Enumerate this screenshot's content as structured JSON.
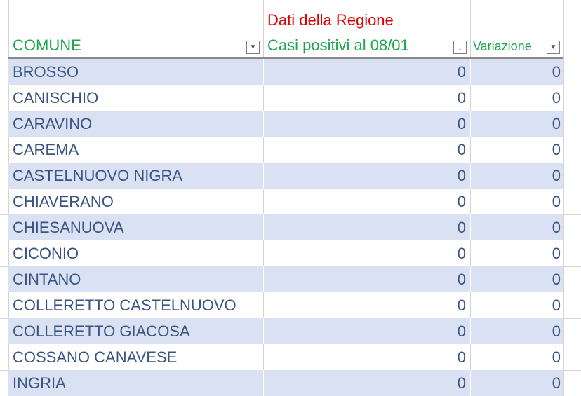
{
  "title": "Dati della Regione",
  "headers": {
    "comune": "COMUNE",
    "casi": "Casi positivi al 08/01",
    "variazione": "Variazione"
  },
  "icons": {
    "filter": "dropdown-arrow-icon",
    "sort": "sort-descending-icon"
  },
  "colors": {
    "header": "#1ea64e",
    "title": "#e00000",
    "band": "#d9e1f2",
    "text": "#3a5482"
  },
  "rows": [
    {
      "comune": "BROSSO",
      "casi": "0",
      "variazione": "0"
    },
    {
      "comune": "CANISCHIO",
      "casi": "0",
      "variazione": "0"
    },
    {
      "comune": "CARAVINO",
      "casi": "0",
      "variazione": "0"
    },
    {
      "comune": "CAREMA",
      "casi": "0",
      "variazione": "0"
    },
    {
      "comune": "CASTELNUOVO NIGRA",
      "casi": "0",
      "variazione": "0"
    },
    {
      "comune": "CHIAVERANO",
      "casi": "0",
      "variazione": "0"
    },
    {
      "comune": "CHIESANUOVA",
      "casi": "0",
      "variazione": "0"
    },
    {
      "comune": "CICONIO",
      "casi": "0",
      "variazione": "0"
    },
    {
      "comune": "CINTANO",
      "casi": "0",
      "variazione": "0"
    },
    {
      "comune": "COLLERETTO CASTELNUOVO",
      "casi": "0",
      "variazione": "0"
    },
    {
      "comune": "COLLERETTO GIACOSA",
      "casi": "0",
      "variazione": "0"
    },
    {
      "comune": "COSSANO CANAVESE",
      "casi": "0",
      "variazione": "0"
    },
    {
      "comune": "INGRIA",
      "casi": "0",
      "variazione": "0"
    }
  ]
}
